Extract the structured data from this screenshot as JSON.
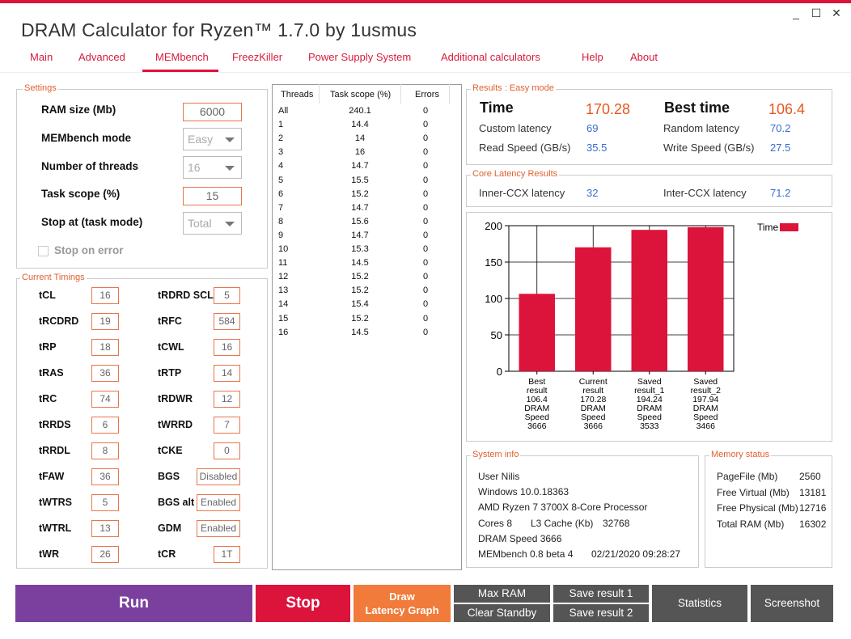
{
  "window": {
    "title": "DRAM Calculator for Ryzen™ 1.7.0 by 1usmus",
    "minimize": "_",
    "maximize": "☐",
    "close": "✕"
  },
  "nav": [
    "Main",
    "Advanced",
    "MEMbench",
    "FreezKiller",
    "Power Supply System",
    "Additional calculators",
    "Help",
    "About"
  ],
  "settings": {
    "legend": "Settings",
    "ram_size_label": "RAM size (Mb)",
    "ram_size_value": "6000",
    "mode_label": "MEMbench mode",
    "mode_value": "Easy",
    "threads_label": "Number of threads",
    "threads_value": "16",
    "task_scope_label": "Task scope (%)",
    "task_scope_value": "15",
    "stop_at_label": "Stop at (task mode)",
    "stop_at_value": "Total",
    "stop_on_error_label": "Stop on error"
  },
  "timings": {
    "legend": "Current Timings",
    "left": [
      {
        "label": "tCL",
        "value": "16"
      },
      {
        "label": "tRCDRD",
        "value": "19"
      },
      {
        "label": "tRP",
        "value": "18"
      },
      {
        "label": "tRAS",
        "value": "36"
      },
      {
        "label": "tRC",
        "value": "74"
      },
      {
        "label": "tRRDS",
        "value": "6"
      },
      {
        "label": "tRRDL",
        "value": "8"
      },
      {
        "label": "tFAW",
        "value": "36"
      },
      {
        "label": "tWTRS",
        "value": "5"
      },
      {
        "label": "tWTRL",
        "value": "13"
      },
      {
        "label": "tWR",
        "value": "26"
      }
    ],
    "right": [
      {
        "label": "tRDRD SCL",
        "value": "5"
      },
      {
        "label": "tRFC",
        "value": "584"
      },
      {
        "label": "tCWL",
        "value": "16"
      },
      {
        "label": "tRTP",
        "value": "14"
      },
      {
        "label": "tRDWR",
        "value": "12"
      },
      {
        "label": "tWRRD",
        "value": "7"
      },
      {
        "label": "tCKE",
        "value": "0"
      },
      {
        "label": "BGS",
        "value": "Disabled"
      },
      {
        "label": "BGS alt",
        "value": "Enabled"
      },
      {
        "label": "GDM",
        "value": "Enabled"
      },
      {
        "label": "tCR",
        "value": "1T"
      }
    ]
  },
  "threads_table": {
    "headers": [
      "Threads",
      "Task scope (%)",
      "Errors"
    ],
    "rows": [
      [
        "All",
        "240.1",
        "0"
      ],
      [
        "1",
        "14.4",
        "0"
      ],
      [
        "2",
        "14",
        "0"
      ],
      [
        "3",
        "16",
        "0"
      ],
      [
        "4",
        "14.7",
        "0"
      ],
      [
        "5",
        "15.5",
        "0"
      ],
      [
        "6",
        "15.2",
        "0"
      ],
      [
        "7",
        "14.7",
        "0"
      ],
      [
        "8",
        "15.6",
        "0"
      ],
      [
        "9",
        "14.7",
        "0"
      ],
      [
        "10",
        "15.3",
        "0"
      ],
      [
        "11",
        "14.5",
        "0"
      ],
      [
        "12",
        "15.2",
        "0"
      ],
      [
        "13",
        "15.2",
        "0"
      ],
      [
        "14",
        "15.4",
        "0"
      ],
      [
        "15",
        "15.2",
        "0"
      ],
      [
        "16",
        "14.5",
        "0"
      ]
    ]
  },
  "results": {
    "legend": "Results : Easy mode",
    "time_label": "Time",
    "time_value": "170.28",
    "best_time_label": "Best time",
    "best_time_value": "106.4",
    "custom_latency_label": "Custom latency",
    "custom_latency_value": "69",
    "random_latency_label": "Random latency",
    "random_latency_value": "70.2",
    "read_speed_label": "Read Speed (GB/s)",
    "read_speed_value": "35.5",
    "write_speed_label": "Write Speed (GB/s)",
    "write_speed_value": "27.5"
  },
  "core_latency": {
    "legend": "Core Latency Results",
    "inner_label": "Inner-CCX latency",
    "inner_value": "32",
    "inter_label": "Inter-CCX latency",
    "inter_value": "71.2"
  },
  "chart_data": {
    "type": "bar",
    "categories": [
      [
        "Best",
        "result",
        "106.4",
        "DRAM",
        "Speed",
        "3666"
      ],
      [
        "Current",
        "result",
        "170.28",
        "DRAM",
        "Speed",
        "3666"
      ],
      [
        "Saved",
        "result_1",
        "194.24",
        "DRAM",
        "Speed",
        "3533"
      ],
      [
        "Saved",
        "result_2",
        "197.94",
        "DRAM",
        "Speed",
        "3466"
      ]
    ],
    "series": [
      {
        "name": "Time",
        "values": [
          106.4,
          170.28,
          194.24,
          197.94
        ]
      }
    ],
    "ylim": [
      0,
      200
    ],
    "yticks": [
      0,
      50,
      100,
      150,
      200
    ],
    "grid": true,
    "legend_position": "top-right",
    "bar_color": "#dc143c"
  },
  "system_info": {
    "legend": "System info",
    "lines": [
      "User Nilis",
      "Windows 10.0.18363",
      "AMD Ryzen 7 3700X 8-Core Processor"
    ],
    "cores": "Cores 8",
    "l3_label": "L3 Cache (Kb)",
    "l3_value": "32768",
    "dram_speed": "DRAM Speed 3666",
    "membench": "MEMbench 0.8 beta 4",
    "datetime": "02/21/2020 09:28:27"
  },
  "memory_status": {
    "legend": "Memory status",
    "rows": [
      {
        "label": "PageFile (Mb)",
        "value": "2560"
      },
      {
        "label": "Free Virtual (Mb)",
        "value": "13181"
      },
      {
        "label": "Free Physical (Mb)",
        "value": "12716"
      },
      {
        "label": "Total RAM (Mb)",
        "value": "16302"
      }
    ]
  },
  "buttons": {
    "run": "Run",
    "stop": "Stop",
    "draw_line1": "Draw",
    "draw_line2": "Latency Graph",
    "max_ram": "Max RAM",
    "clear_standby": "Clear Standby",
    "save1": "Save result 1",
    "save2": "Save result 2",
    "statistics": "Statistics",
    "screenshot": "Screenshot"
  },
  "colors": {
    "accent": "#dc143c",
    "run": "#7b3f9e",
    "stop": "#dc143c",
    "draw": "#f07b3a",
    "gray_button": "#555555",
    "value_blue": "#3a6bd0",
    "value_orange": "#e8561e"
  }
}
